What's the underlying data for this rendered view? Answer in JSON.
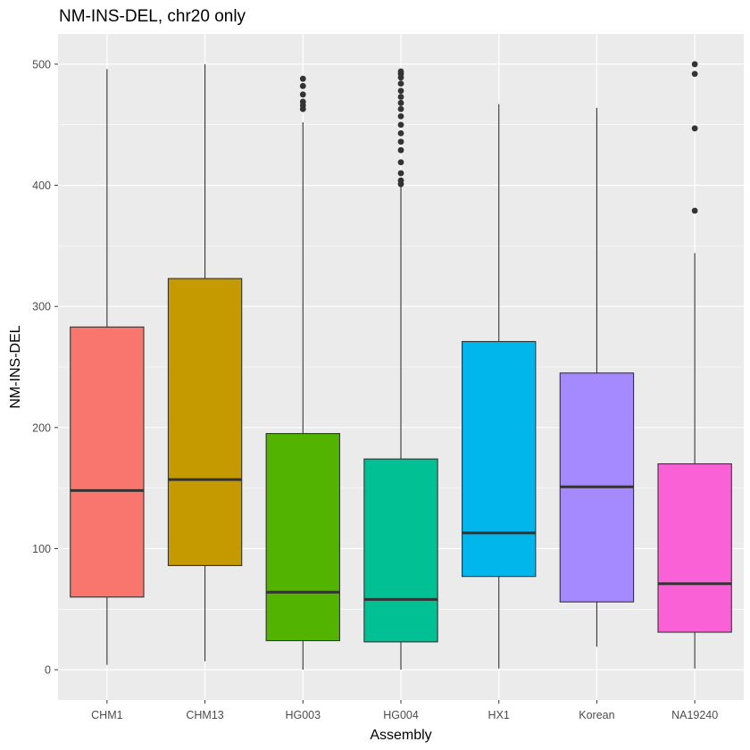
{
  "chart_data": {
    "type": "boxplot",
    "title": "NM-INS-DEL, chr20 only",
    "xlabel": "Assembly",
    "ylabel": "NM-INS-DEL",
    "ylim": [
      -25,
      525
    ],
    "yticks": [
      0,
      100,
      200,
      300,
      400,
      500
    ],
    "grid": true,
    "legend": "none",
    "categories": [
      "CHM1",
      "CHM13",
      "HG003",
      "HG004",
      "HX1",
      "Korean",
      "NA19240"
    ],
    "series": [
      {
        "category": "CHM1",
        "color": "#F8766D",
        "whisker_low": 4,
        "q1": 60,
        "median": 148,
        "q3": 283,
        "whisker_high": 496,
        "outliers": []
      },
      {
        "category": "CHM13",
        "color": "#C49A00",
        "whisker_low": 7,
        "q1": 86,
        "median": 157,
        "q3": 323,
        "whisker_high": 500,
        "outliers": []
      },
      {
        "category": "HG003",
        "color": "#53B400",
        "whisker_low": 0,
        "q1": 24,
        "median": 64,
        "q3": 195,
        "whisker_high": 452,
        "outliers": [
          463,
          466,
          469,
          475,
          482,
          488
        ]
      },
      {
        "category": "HG004",
        "color": "#00C094",
        "whisker_low": 0,
        "q1": 23,
        "median": 58,
        "q3": 174,
        "whisker_high": 400,
        "outliers": [
          401,
          404,
          410,
          419,
          429,
          436,
          443,
          450,
          457,
          463,
          468,
          473,
          478,
          484,
          489,
          492,
          494
        ]
      },
      {
        "category": "HX1",
        "color": "#00B6EB",
        "whisker_low": 1,
        "q1": 77,
        "median": 113,
        "q3": 271,
        "whisker_high": 467,
        "outliers": []
      },
      {
        "category": "Korean",
        "color": "#A58AFF",
        "whisker_low": 19,
        "q1": 56,
        "median": 151,
        "q3": 245,
        "whisker_high": 464,
        "outliers": []
      },
      {
        "category": "NA19240",
        "color": "#FB61D7",
        "whisker_low": 1,
        "q1": 31,
        "median": 71,
        "q3": 170,
        "whisker_high": 344,
        "outliers": [
          379,
          447,
          492,
          500
        ]
      }
    ]
  }
}
